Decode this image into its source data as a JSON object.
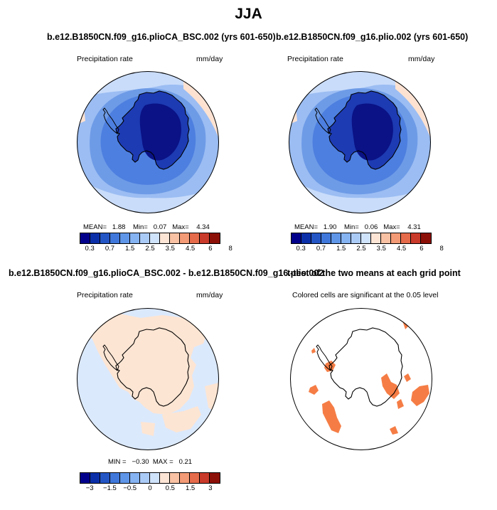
{
  "figure": {
    "title": "JJA"
  },
  "panels": [
    {
      "id": "p1",
      "case_title": "b.e12.B1850CN.f09_g16.plioCA_BSC.002 (yrs 601-650)",
      "left_label": "Precipitation rate",
      "right_label": "mm/day",
      "stats": {
        "mean_label": "MEAN=",
        "mean": "1.88",
        "min_label": "Min=",
        "min": "0.07",
        "max_label": "Max=",
        "max": "4.34"
      }
    },
    {
      "id": "p2",
      "case_title": "b.e12.B1850CN.f09_g16.plio.002 (yrs 601-650)",
      "left_label": "Precipitation rate",
      "right_label": "mm/day",
      "stats": {
        "mean_label": "MEAN=",
        "mean": "1.90",
        "min_label": "Min=",
        "min": "0.06",
        "max_label": "Max=",
        "max": "4.31"
      }
    },
    {
      "id": "p3",
      "case_title": "b.e12.B1850CN.f09_g16.plioCA_BSC.002 - b.e12.B1850CN.f09_g16.plio.002",
      "left_label": "Precipitation rate",
      "right_label": "mm/day",
      "stats": {
        "min_label": "MIN =",
        "min": "−0.30",
        "max_label": "MAX =",
        "max": "0.21"
      }
    },
    {
      "id": "p4",
      "case_title": "t-test of the two means at each grid point",
      "left_label": "Colored cells are significant at the 0.05 level"
    }
  ],
  "colorbar_abs": {
    "colors": [
      "#00008b",
      "#0b2fa8",
      "#2455c4",
      "#3f78da",
      "#6096e8",
      "#86b3f2",
      "#abcbf7",
      "#cfe3fb",
      "#fde5d6",
      "#f9c2a4",
      "#f39b76",
      "#e56b4b",
      "#c93a2a",
      "#8c1007"
    ],
    "tick_labels": [
      "0.3",
      "0.7",
      "1.5",
      "2.5",
      "3.5",
      "4.5",
      "6",
      "8"
    ]
  },
  "colorbar_diff": {
    "colors": [
      "#00008b",
      "#0b2fa8",
      "#2455c4",
      "#3f78da",
      "#6096e8",
      "#86b3f2",
      "#abcbf7",
      "#cfe3fb",
      "#fde5d6",
      "#f9c2a4",
      "#f39b76",
      "#e56b4b",
      "#c93a2a",
      "#8c1007"
    ],
    "tick_labels": [
      "−3",
      "−1.5",
      "−0.5",
      "0",
      "0.5",
      "1.5",
      "3"
    ]
  },
  "map_colors": {
    "ocean_mid": "#9bbdf3",
    "ocean_outer": "#c9dcfa",
    "ocean_ring": "#6e9be6",
    "coast_blue": "#4d7fe0",
    "interior_dark": "#0a1285",
    "interior_mid": "#1d3bb3",
    "warm": "#fde2d2",
    "warm_strong": "#f8c8ad",
    "diff_blue": "#dbe9fc",
    "diff_warm": "#fde5d3",
    "sig": "#f57d45"
  }
}
